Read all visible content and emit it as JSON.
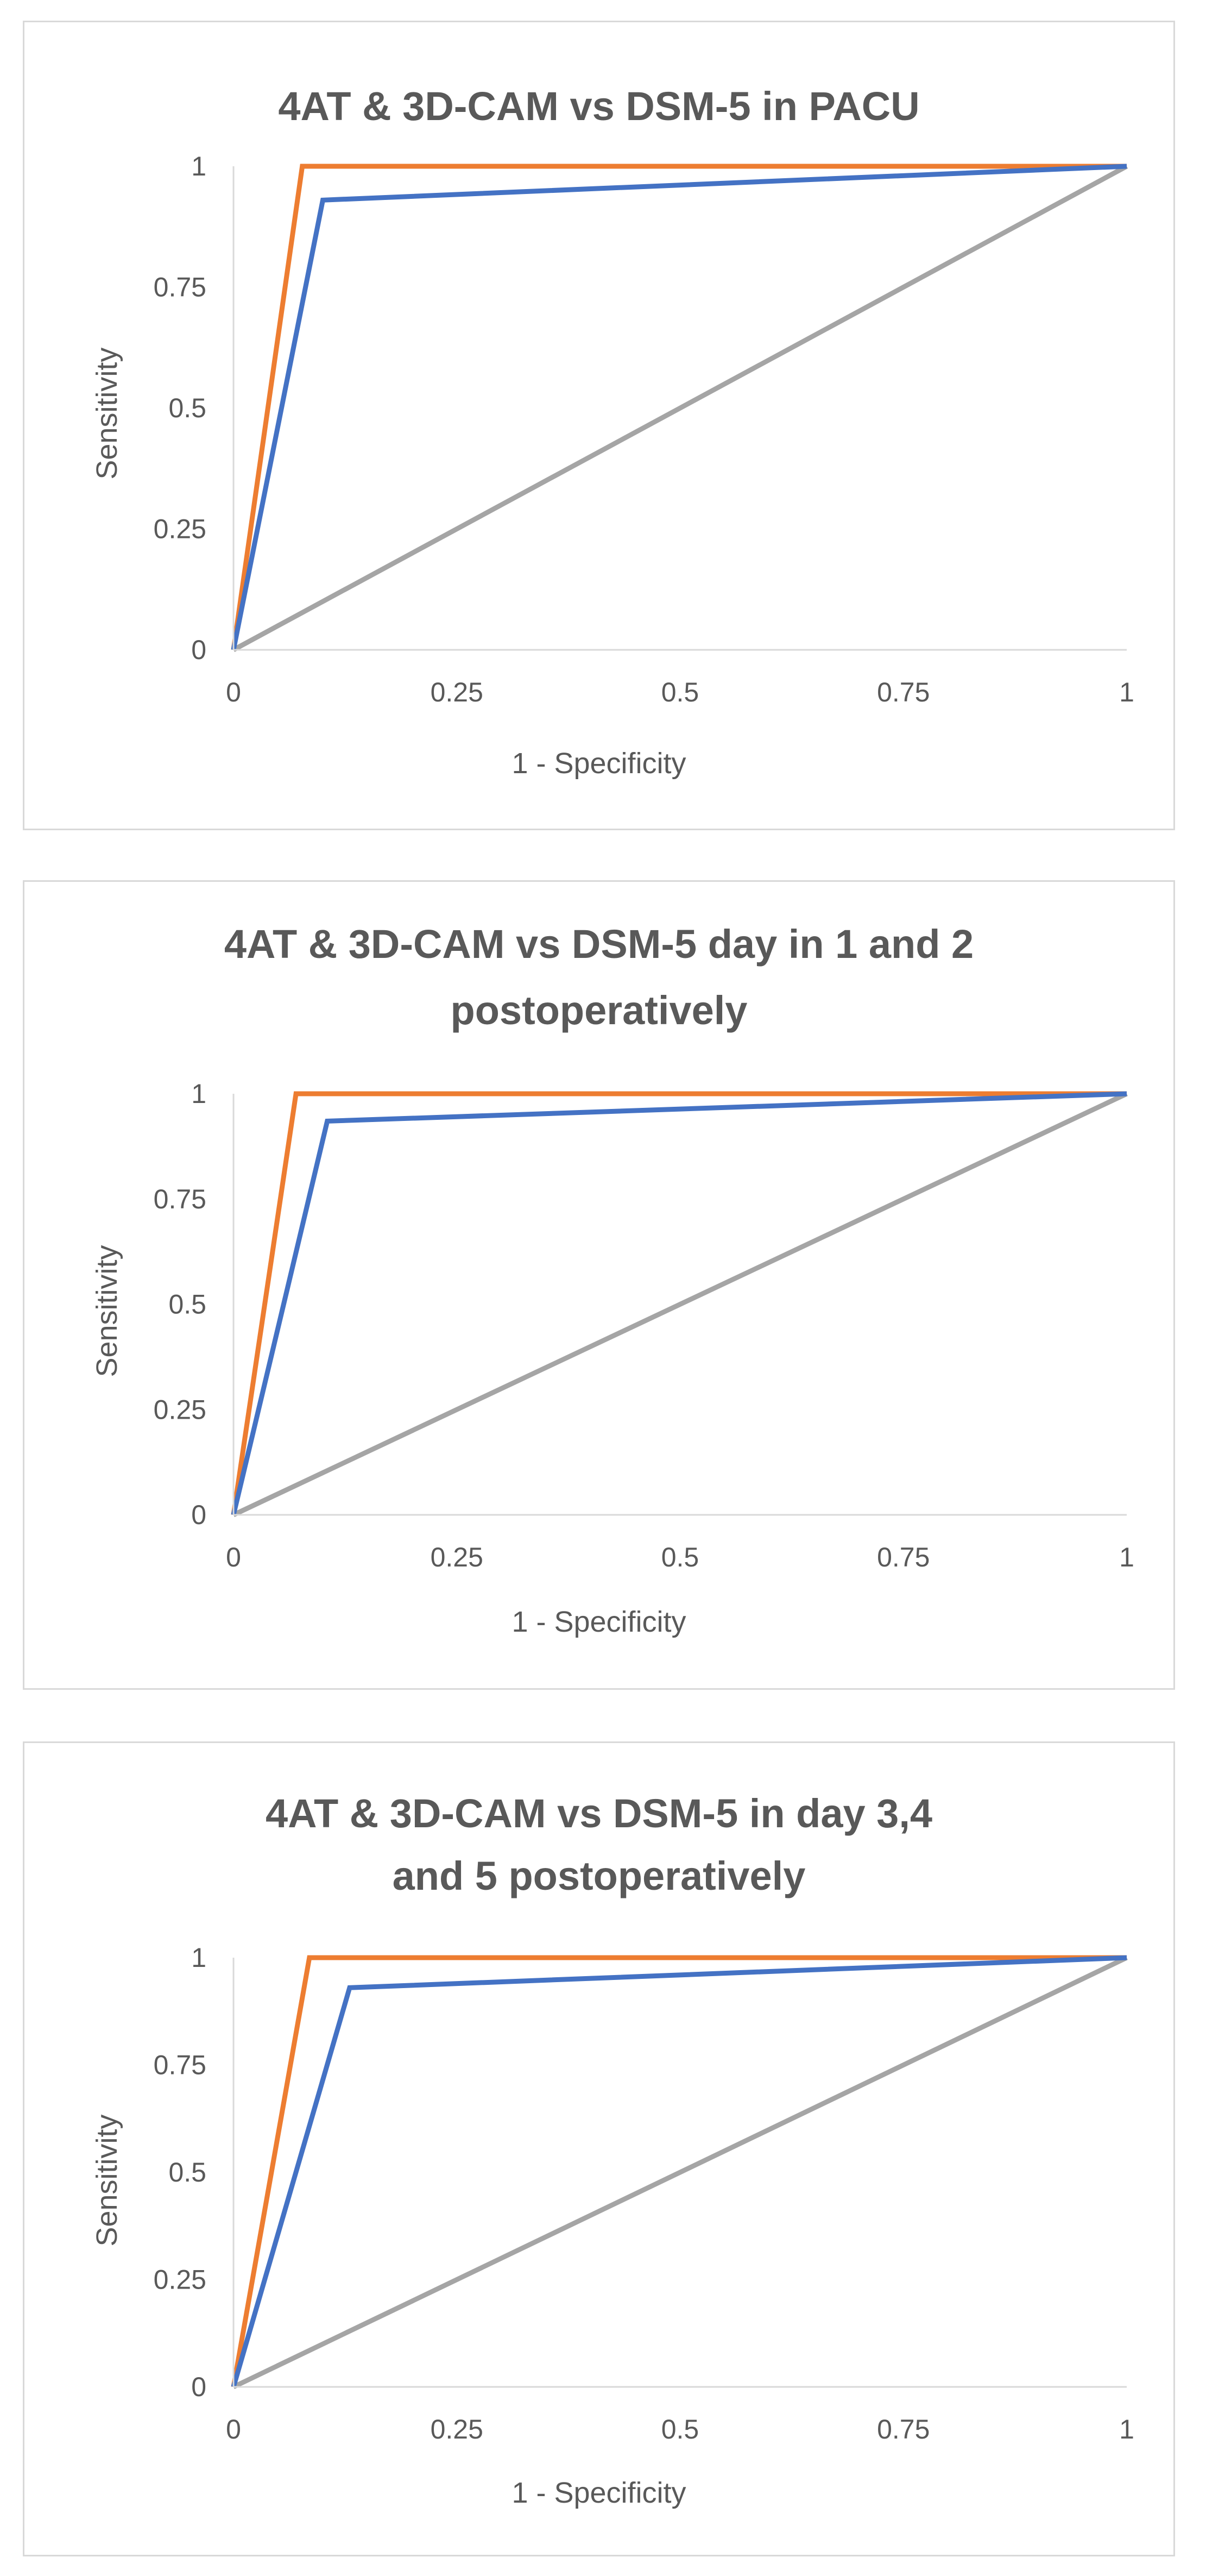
{
  "chart_data": [
    {
      "type": "line",
      "title_lines": [
        "4AT & 3D-CAM vs DSM-5 in PACU"
      ],
      "xlabel": "1 - Specificity",
      "ylabel": "Sensitivity",
      "xlim": [
        0,
        1
      ],
      "ylim": [
        0,
        1
      ],
      "x_ticks": [
        "0",
        "0.25",
        "0.5",
        "0.75",
        "1"
      ],
      "y_ticks": [
        "0",
        "0.25",
        "0.5",
        "0.75",
        "1"
      ],
      "series": [
        {
          "name": "Reference",
          "color": "#a5a5a5",
          "x": [
            0,
            1
          ],
          "y": [
            0,
            1
          ]
        },
        {
          "name": "Orange curve",
          "color": "#ed7d31",
          "x": [
            0,
            0.077,
            1
          ],
          "y": [
            0,
            1,
            1
          ]
        },
        {
          "name": "Blue curve",
          "color": "#4472c4",
          "x": [
            0,
            0.1,
            1
          ],
          "y": [
            0,
            0.93,
            1
          ]
        }
      ]
    },
    {
      "type": "line",
      "title_lines": [
        "4AT & 3D-CAM vs DSM-5 day in 1 and 2",
        "postoperatively"
      ],
      "xlabel": "1 - Specificity",
      "ylabel": "Sensitivity",
      "xlim": [
        0,
        1
      ],
      "ylim": [
        0,
        1
      ],
      "x_ticks": [
        "0",
        "0.25",
        "0.5",
        "0.75",
        "1"
      ],
      "y_ticks": [
        "0",
        "0.25",
        "0.5",
        "0.75",
        "1"
      ],
      "series": [
        {
          "name": "Reference",
          "color": "#a5a5a5",
          "x": [
            0,
            1
          ],
          "y": [
            0,
            1
          ]
        },
        {
          "name": "Orange curve",
          "color": "#ed7d31",
          "x": [
            0,
            0.07,
            1
          ],
          "y": [
            0,
            1,
            1
          ]
        },
        {
          "name": "Blue curve",
          "color": "#4472c4",
          "x": [
            0,
            0.105,
            1
          ],
          "y": [
            0,
            0.935,
            1
          ]
        }
      ]
    },
    {
      "type": "line",
      "title_lines": [
        "4AT & 3D-CAM vs DSM-5 in day 3,4",
        "and 5  postoperatively"
      ],
      "xlabel": "1 - Specificity",
      "ylabel": "Sensitivity",
      "xlim": [
        0,
        1
      ],
      "ylim": [
        0,
        1
      ],
      "x_ticks": [
        "0",
        "0.25",
        "0.5",
        "0.75",
        "1"
      ],
      "y_ticks": [
        "0",
        "0.25",
        "0.5",
        "0.75",
        "1"
      ],
      "series": [
        {
          "name": "Reference",
          "color": "#a5a5a5",
          "x": [
            0,
            1
          ],
          "y": [
            0,
            1
          ]
        },
        {
          "name": "Orange curve",
          "color": "#ed7d31",
          "x": [
            0,
            0.085,
            1
          ],
          "y": [
            0,
            1,
            1
          ]
        },
        {
          "name": "Blue curve",
          "color": "#4472c4",
          "x": [
            0,
            0.13,
            1
          ],
          "y": [
            0,
            0.93,
            1
          ]
        }
      ]
    }
  ]
}
